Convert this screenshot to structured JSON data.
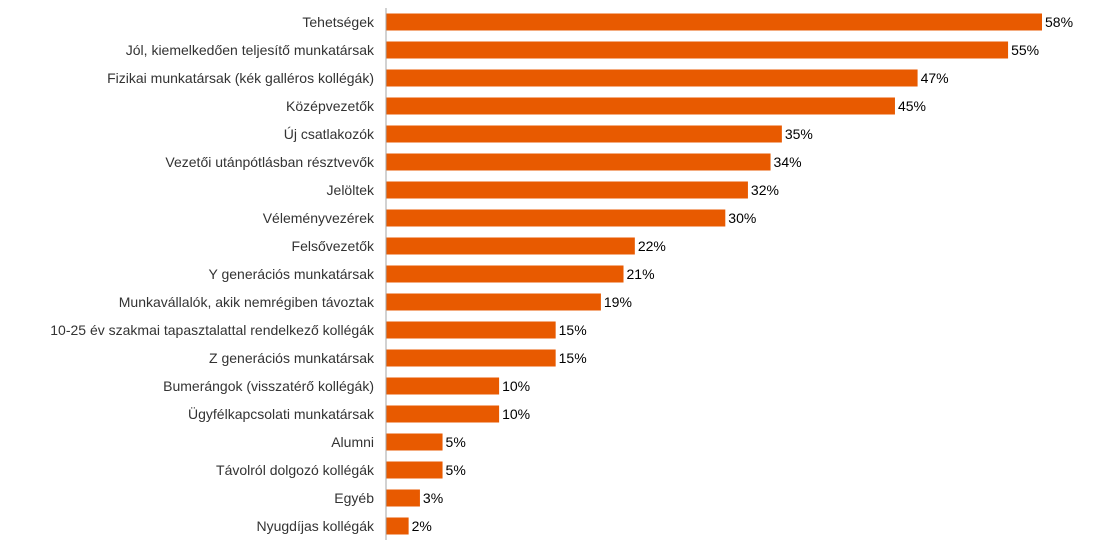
{
  "chart_data": {
    "type": "bar",
    "orientation": "horizontal",
    "title": "",
    "xlabel": "",
    "ylabel": "",
    "xlim": [
      0,
      58
    ],
    "grid": false,
    "bar_color": "#e85a00",
    "value_suffix": "%",
    "categories": [
      "Tehetségek",
      "Jól, kiemelkedően teljesítő munkatársak",
      "Fizikai munkatársak (kék galléros kollégák)",
      "Középvezetők",
      "Új csatlakozók",
      "Vezetői utánpótlásban résztvevők",
      "Jelöltek",
      "Véleményvezérek",
      "Felsővezetők",
      "Y generációs munkatársak",
      "Munkavállalók, akik nemrégiben távoztak",
      "10-25 év szakmai tapasztalattal rendelkező kollégák",
      "Z generációs munkatársak",
      "Bumerángok (visszatérő kollégák)",
      "Ügyfélkapcsolati munkatársak",
      "Alumni",
      "Távolról dolgozó kollégák",
      "Egyéb",
      "Nyugdíjas kollégák"
    ],
    "values": [
      58,
      55,
      47,
      45,
      35,
      34,
      32,
      30,
      22,
      21,
      19,
      15,
      15,
      10,
      10,
      5,
      5,
      3,
      2
    ],
    "value_labels": [
      "58%",
      "55%",
      "47%",
      "45%",
      "35%",
      "34%",
      "32%",
      "30%",
      "22%",
      "21%",
      "19%",
      "15%",
      "15%",
      "10%",
      "10%",
      "5%",
      "5%",
      "3%",
      "2%"
    ]
  }
}
